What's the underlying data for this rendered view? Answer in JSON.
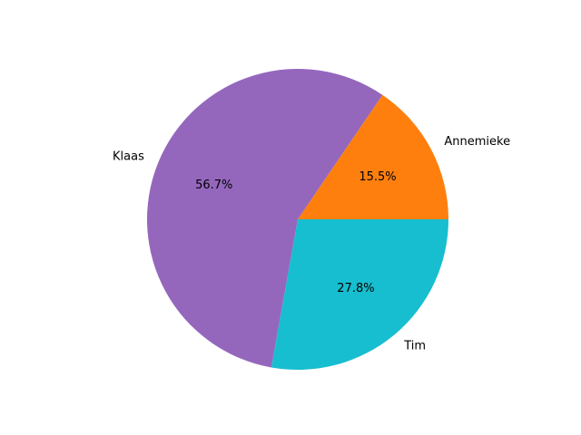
{
  "chart_data": {
    "type": "pie",
    "title": "",
    "start_angle_deg": 0,
    "direction": "counterclockwise",
    "slices": [
      {
        "label": "Annemieke",
        "value": 15.5,
        "pct_label": "15.5%",
        "color": "#ff7f0e"
      },
      {
        "label": "Klaas",
        "value": 56.7,
        "pct_label": "56.7%",
        "color": "#9467bd"
      },
      {
        "label": "Tim",
        "value": 27.8,
        "pct_label": "27.8%",
        "color": "#17becf"
      }
    ]
  }
}
